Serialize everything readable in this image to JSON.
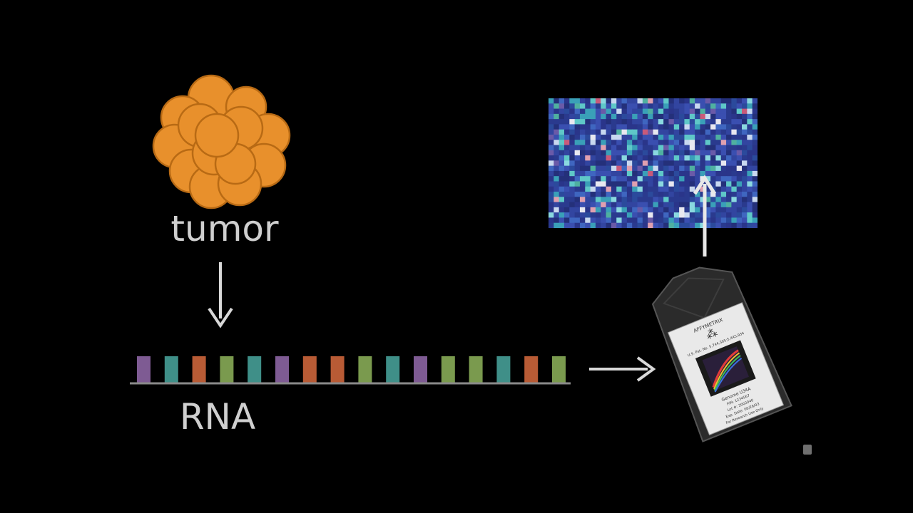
{
  "labels": {
    "tumor": "tumor",
    "rna": "RNA"
  },
  "chip": {
    "brand": "AFFYMETRIX",
    "patent": "U.S. Pat. No. 5,744,305;5,445,934",
    "name": "Genome U34A",
    "pn": "P/N: 1234567",
    "lot": "Lot #: 2002040",
    "exp": "Exp. Date: 06/26/03",
    "note": "For Research Use Only"
  },
  "rna_bar_colors": [
    "#7e5b93",
    "#3f8f88",
    "#b85b35",
    "#7a9a4e",
    "#3f8f88",
    "#7e5b93",
    "#b85b35",
    "#b85b35",
    "#7a9a4e",
    "#3f8f88",
    "#7e5b93",
    "#7a9a4e",
    "#7a9a4e",
    "#3f8f88",
    "#b85b35",
    "#7a9a4e"
  ],
  "colors": {
    "tumor_fill": "#e8902c",
    "tumor_stroke": "#b86a14",
    "arrow": "#d8d8d8",
    "heatmap_base": "#2c3b8f"
  }
}
